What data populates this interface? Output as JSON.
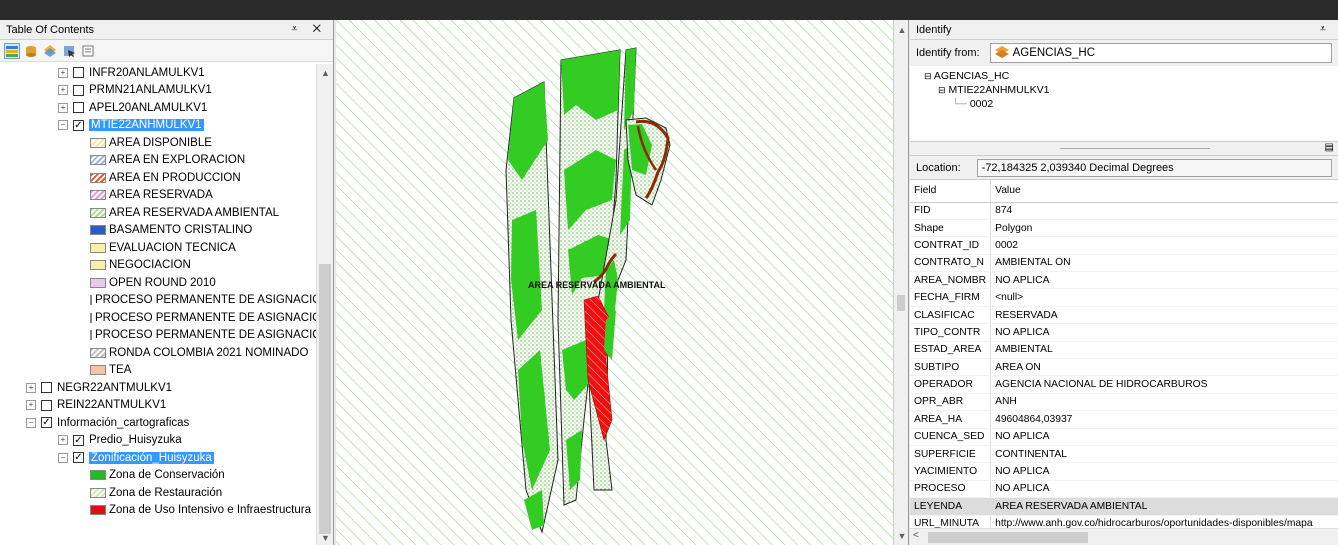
{
  "toc": {
    "title": "Table Of Contents",
    "pin": "⩡",
    "close": "✕",
    "tree": [
      {
        "label": "INFR20ANLAMULKV1",
        "indent": 58,
        "expander": "⊞",
        "check": false
      },
      {
        "label": "PRMN21ANLAMULKV1",
        "indent": 58,
        "expander": "⊞",
        "check": false
      },
      {
        "label": "APEL20ANLAMULKV1",
        "indent": 58,
        "expander": "⊞",
        "check": false
      },
      {
        "label": "MTIE22ANHMULKV1",
        "indent": 58,
        "expander": "⊟",
        "check": true,
        "selected": true
      },
      {
        "label": "AREA DISPONIBLE",
        "indent": 90,
        "swatch": "#f3e6a8",
        "hatch": true
      },
      {
        "label": "AREA EN EXPLORACION",
        "indent": 90,
        "swatch": "#9fb6e8",
        "hatch": true
      },
      {
        "label": "AREA EN PRODUCCION",
        "indent": 90,
        "swatch": "#e05a2a",
        "hatch": true
      },
      {
        "label": "AREA RESERVADA",
        "indent": 90,
        "swatch": "#e59ae0",
        "hatch": true
      },
      {
        "label": "AREA RESERVADA AMBIENTAL",
        "indent": 90,
        "swatch": "#a8e08a",
        "hatch": true
      },
      {
        "label": "BASAMENTO CRISTALINO",
        "indent": 90,
        "swatch": "#2a5cc8"
      },
      {
        "label": "EVALUACION TECNICA",
        "indent": 90,
        "swatch": "#f6f0a8"
      },
      {
        "label": "NEGOCIACION",
        "indent": 90,
        "swatch": "#f6f0a8"
      },
      {
        "label": "OPEN ROUND 2010",
        "indent": 90,
        "swatch": "#e8c8ee"
      },
      {
        "label": "PROCESO PERMANENTE DE ASIGNACIO",
        "indent": 90,
        "swatch": "#a8c8e8"
      },
      {
        "label": "PROCESO PERMANENTE DE ASIGNACIO",
        "indent": 90,
        "swatch": "#e8a0a0"
      },
      {
        "label": "PROCESO PERMANENTE DE ASIGNACIO",
        "indent": 90,
        "swatch": "#f6f0a8"
      },
      {
        "label": "RONDA COLOMBIA 2021 NOMINADO",
        "indent": 90,
        "swatch": "#bdbdbd",
        "hatch": true
      },
      {
        "label": "TEA",
        "indent": 90,
        "swatch": "#f2c4a8"
      },
      {
        "label": "NEGR22ANTMULKV1",
        "indent": 26,
        "expander": "⊞",
        "check": false
      },
      {
        "label": "REIN22ANTMULKV1",
        "indent": 26,
        "expander": "⊞",
        "check": false
      },
      {
        "label": "Información_cartograficas",
        "indent": 26,
        "expander": "⊟",
        "check": true
      },
      {
        "label": "Predio_Huisyzuka",
        "indent": 58,
        "expander": "⊞",
        "check": true
      },
      {
        "label": "Zonificación_Huisyzuka",
        "indent": 58,
        "expander": "⊟",
        "check": true,
        "selected": true
      },
      {
        "label": "Zona de Conservación",
        "indent": 90,
        "swatch": "#22bb22"
      },
      {
        "label": "Zona de Restauración",
        "indent": 90,
        "swatch": "#cfe8b0",
        "hatch": true
      },
      {
        "label": "Zona de Uso Intensivo e Infraestructura",
        "indent": 90,
        "swatch": "#e01010"
      }
    ]
  },
  "map": {
    "label": "AREA RESERVADA AMBIENTAL",
    "colors": {
      "hatch": "#7bd36a",
      "green": "#33cc22",
      "red": "#ee1111",
      "brown": "#8b2a00"
    }
  },
  "identify": {
    "title": "Identify",
    "pin": "⩡",
    "from_label": "Identify from:",
    "from_value": "AGENCIAS_HC",
    "tree_root": "AGENCIAS_HC",
    "tree_child": "MTIE22ANHMULKV1",
    "tree_leaf": "0002",
    "location_label": "Location:",
    "location_value": "-72,184325  2,039340 Decimal Degrees",
    "field_header": "Field",
    "value_header": "Value",
    "rows": [
      {
        "field": "FID",
        "value": "874"
      },
      {
        "field": "Shape",
        "value": "Polygon"
      },
      {
        "field": "CONTRAT_ID",
        "value": "0002"
      },
      {
        "field": "CONTRATO_N",
        "value": "AMBIENTAL ON"
      },
      {
        "field": "AREA_NOMBR",
        "value": "NO APLICA"
      },
      {
        "field": "FECHA_FIRM",
        "value": "<null>"
      },
      {
        "field": "CLASIFICAC",
        "value": "RESERVADA"
      },
      {
        "field": "TIPO_CONTR",
        "value": "NO APLICA"
      },
      {
        "field": "ESTAD_AREA",
        "value": "AMBIENTAL"
      },
      {
        "field": "SUBTIPO",
        "value": "AREA ON"
      },
      {
        "field": "OPERADOR",
        "value": "AGENCIA NACIONAL DE HIDROCARBUROS"
      },
      {
        "field": "OPR_ABR",
        "value": "ANH"
      },
      {
        "field": "AREA_HA",
        "value": "49604864,03937"
      },
      {
        "field": "CUENCA_SED",
        "value": "NO APLICA"
      },
      {
        "field": "SUPERFICIE",
        "value": "CONTINENTAL"
      },
      {
        "field": "YACIMIENTO",
        "value": "NO APLICA"
      },
      {
        "field": "PROCESO",
        "value": "NO APLICA"
      },
      {
        "field": "LEYENDA",
        "value": "AREA RESERVADA AMBIENTAL",
        "selected": true
      },
      {
        "field": "URL_MINUTA",
        "value": "http://www.anh.gov.co/hidrocarburos/oportunidades-disponibles/mapa"
      }
    ]
  }
}
